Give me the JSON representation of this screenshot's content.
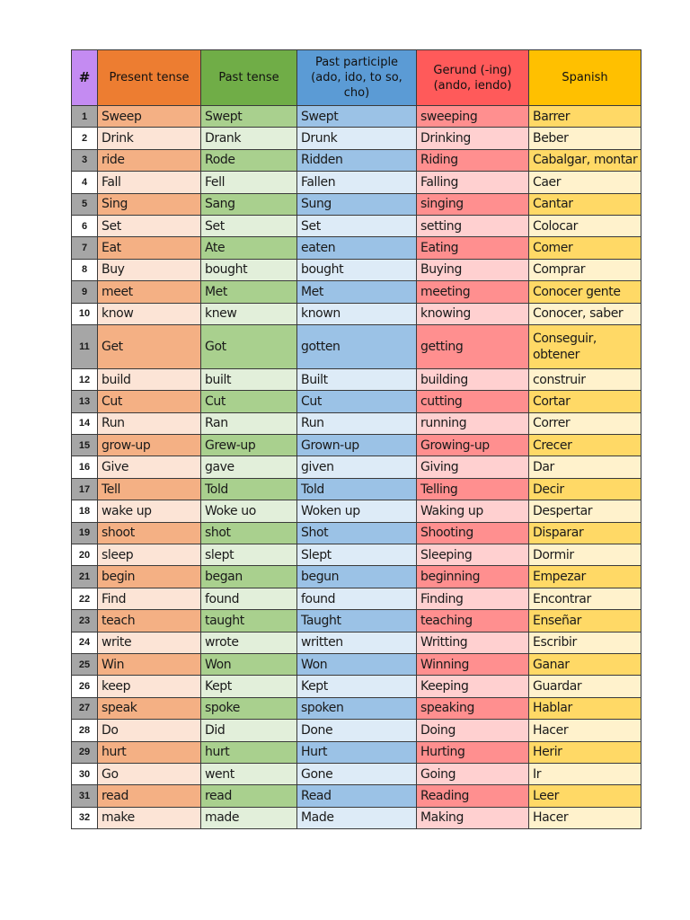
{
  "colors": {
    "num_header": "#c48bf2",
    "present_header": "#ed7d31",
    "past_header": "#70ad47",
    "participle_header": "#5b9bd5",
    "gerund_header": "#ff5a5a",
    "spanish_header": "#ffc000",
    "num_dark": "#a6a6a6",
    "num_light": "#ffffff",
    "present_dark": "#f4b084",
    "present_light": "#fce4d6",
    "past_dark": "#a9d08e",
    "past_light": "#e2efda",
    "participle_dark": "#9bc2e6",
    "participle_light": "#ddebf7",
    "gerund_dark": "#ff8f8f",
    "gerund_light": "#ffd0d0",
    "spanish_dark": "#ffd966",
    "spanish_light": "#fff2cc"
  },
  "headers": {
    "num": "#",
    "present": "Present tense",
    "past": "Past tense",
    "participle": "Past participle (ado, ido, to so, cho)",
    "gerund": "Gerund (-ing)(ando, iendo)",
    "spanish": "Spanish"
  },
  "rows": [
    {
      "num": "1",
      "present": "Sweep",
      "past": "Swept",
      "participle": "Swept",
      "gerund": "sweeping",
      "spanish": "Barrer"
    },
    {
      "num": "2",
      "present": "Drink",
      "past": "Drank",
      "participle": "Drunk",
      "gerund": "Drinking",
      "spanish": "Beber"
    },
    {
      "num": "3",
      "present": "ride",
      "past": "Rode",
      "participle": "Ridden",
      "gerund": "Riding",
      "spanish": "Cabalgar, montar"
    },
    {
      "num": "4",
      "present": "Fall",
      "past": "Fell",
      "participle": "Fallen",
      "gerund": "Falling",
      "spanish": "Caer"
    },
    {
      "num": "5",
      "present": "Sing",
      "past": "Sang",
      "participle": "Sung",
      "gerund": "singing",
      "spanish": "Cantar"
    },
    {
      "num": "6",
      "present": "Set",
      "past": "Set",
      "participle": "Set",
      "gerund": "setting",
      "spanish": "Colocar"
    },
    {
      "num": "7",
      "present": "Eat",
      "past": "Ate",
      "participle": "eaten",
      "gerund": "Eating",
      "spanish": "Comer"
    },
    {
      "num": "8",
      "present": "Buy",
      "past": "bought",
      "participle": "bought",
      "gerund": "Buying",
      "spanish": "Comprar"
    },
    {
      "num": "9",
      "present": "meet",
      "past": "Met",
      "participle": "Met",
      "gerund": "meeting",
      "spanish": "Conocer gente"
    },
    {
      "num": "10",
      "present": "know",
      "past": "knew",
      "participle": "known",
      "gerund": "knowing",
      "spanish": "Conocer, saber"
    },
    {
      "num": "11",
      "present": "Get",
      "past": "Got",
      "participle": "gotten",
      "gerund": "getting",
      "spanish": "Conseguir, obtener"
    },
    {
      "num": "12",
      "present": "build",
      "past": "built",
      "participle": "Built",
      "gerund": "building",
      "spanish": "construir"
    },
    {
      "num": "13",
      "present": "Cut",
      "past": "Cut",
      "participle": "Cut",
      "gerund": "cutting",
      "spanish": "Cortar"
    },
    {
      "num": "14",
      "present": "Run",
      "past": "Ran",
      "participle": "Run",
      "gerund": "running",
      "spanish": "Correr"
    },
    {
      "num": "15",
      "present": "grow-up",
      "past": "Grew-up",
      "participle": "Grown-up",
      "gerund": "Growing-up",
      "spanish": "Crecer"
    },
    {
      "num": "16",
      "present": "Give",
      "past": "gave",
      "participle": "given",
      "gerund": "Giving",
      "spanish": "Dar"
    },
    {
      "num": "17",
      "present": "Tell",
      "past": "Told",
      "participle": "Told",
      "gerund": "Telling",
      "spanish": "Decir"
    },
    {
      "num": "18",
      "present": "wake up",
      "past": "Woke uo",
      "participle": "Woken up",
      "gerund": "Waking up",
      "spanish": "Despertar"
    },
    {
      "num": "19",
      "present": "shoot",
      "past": "shot",
      "participle": "Shot",
      "gerund": "Shooting",
      "spanish": "Disparar"
    },
    {
      "num": "20",
      "present": "sleep",
      "past": "slept",
      "participle": "Slept",
      "gerund": "Sleeping",
      "spanish": "Dormir"
    },
    {
      "num": "21",
      "present": "begin",
      "past": "began",
      "participle": "begun",
      "gerund": "beginning",
      "spanish": "Empezar"
    },
    {
      "num": "22",
      "present": "Find",
      "past": "found",
      "participle": "found",
      "gerund": "Finding",
      "spanish": "Encontrar"
    },
    {
      "num": "23",
      "present": "teach",
      "past": "taught",
      "participle": "Taught",
      "gerund": "teaching",
      "spanish": "Enseñar"
    },
    {
      "num": "24",
      "present": "write",
      "past": "wrote",
      "participle": "written",
      "gerund": "Writting",
      "spanish": "Escribir"
    },
    {
      "num": "25",
      "present": "Win",
      "past": "Won",
      "participle": "Won",
      "gerund": "Winning",
      "spanish": "Ganar"
    },
    {
      "num": "26",
      "present": "keep",
      "past": "Kept",
      "participle": "Kept",
      "gerund": "Keeping",
      "spanish": "Guardar"
    },
    {
      "num": "27",
      "present": "speak",
      "past": "spoke",
      "participle": "spoken",
      "gerund": "speaking",
      "spanish": "Hablar"
    },
    {
      "num": "28",
      "present": "Do",
      "past": "Did",
      "participle": "Done",
      "gerund": "Doing",
      "spanish": "Hacer"
    },
    {
      "num": "29",
      "present": "hurt",
      "past": "hurt",
      "participle": "Hurt",
      "gerund": "Hurting",
      "spanish": "Herir"
    },
    {
      "num": "30",
      "present": "Go",
      "past": "went",
      "participle": "Gone",
      "gerund": "Going",
      "spanish": "Ir"
    },
    {
      "num": "31",
      "present": "read",
      "past": "read",
      "participle": "Read",
      "gerund": "Reading",
      "spanish": "Leer"
    },
    {
      "num": "32",
      "present": "make",
      "past": "made",
      "participle": "Made",
      "gerund": "Making",
      "spanish": "Hacer"
    }
  ]
}
